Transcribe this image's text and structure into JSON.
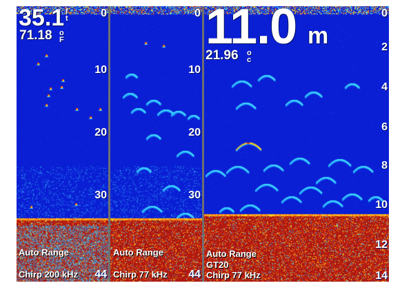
{
  "panels": [
    {
      "depth_value": "35.1",
      "depth_unit": [
        "f",
        "t"
      ],
      "temp_value": "71.18",
      "temp_unit": [
        "o",
        "F"
      ],
      "scale_ticks": [
        "0",
        "10",
        "20",
        "30"
      ],
      "range_label": "Auto Range",
      "freq_label": "Chirp 200 kHz",
      "bottom_tick": "44"
    },
    {
      "scale_ticks": [
        "0",
        "10",
        "20",
        "30"
      ],
      "range_label": "Auto Range",
      "freq_label": "Chirp 77 kHz",
      "bottom_tick": "44"
    },
    {
      "depth_value": "11.0",
      "depth_unit": "m",
      "temp_value": "21.96",
      "temp_unit": [
        "o",
        "c"
      ],
      "scale_ticks": [
        "0",
        "2",
        "4",
        "6",
        "8",
        "10",
        "12",
        "14"
      ],
      "range_label": "Auto Range",
      "transducer_label": "GT20",
      "freq_label": "Chirp 77 kHz"
    }
  ],
  "colors": {
    "water": "#0a1fd4",
    "bottom": "#b31a12",
    "return_strong": "#ffd21a",
    "return_mid": "#3fd8ff",
    "surface_clutter": "#e03a1a"
  }
}
